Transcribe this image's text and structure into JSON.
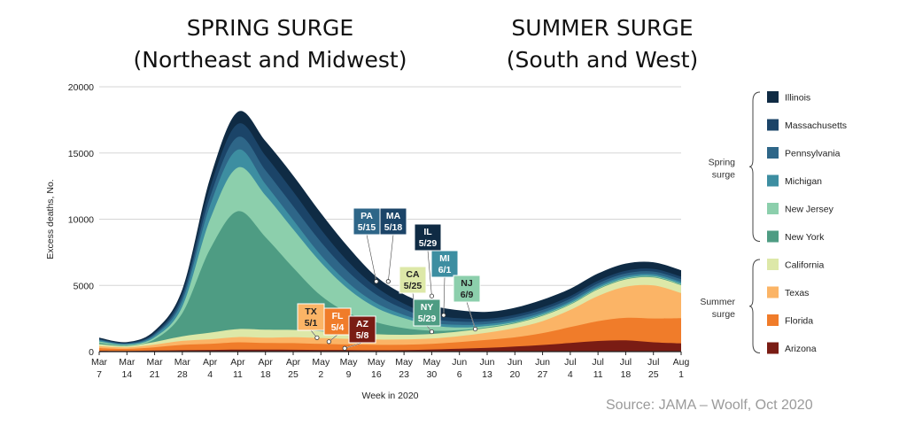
{
  "headlines": {
    "spring_line1": "SPRING SURGE",
    "spring_line2": "(Northeast and Midwest)",
    "summer_line1": "SUMMER SURGE",
    "summer_line2": "(South and West)"
  },
  "source": "Source: JAMA – Woolf, Oct 2020",
  "colors": {
    "Arizona": "#7a1c14",
    "Florida": "#f07c2a",
    "Texas": "#fbb466",
    "California": "#dde8a8",
    "New York": "#4e9c83",
    "New Jersey": "#8ccfac",
    "Michigan": "#3d8ea1",
    "Pennsylvania": "#2e6688",
    "Massachusetts": "#1b4468",
    "Illinois": "#0f2b44"
  },
  "chart_data": {
    "type": "area",
    "stacked": true,
    "xlabel": "Week in 2020",
    "ylabel": "Excess deaths, No.",
    "ylim": [
      0,
      20000
    ],
    "yticks": [
      0,
      5000,
      10000,
      15000,
      20000
    ],
    "grid": true,
    "legend_position": "right",
    "categories": [
      [
        "Mar",
        "7"
      ],
      [
        "Mar",
        "14"
      ],
      [
        "Mar",
        "21"
      ],
      [
        "Mar",
        "28"
      ],
      [
        "Apr",
        "4"
      ],
      [
        "Apr",
        "11"
      ],
      [
        "Apr",
        "18"
      ],
      [
        "Apr",
        "25"
      ],
      [
        "May",
        "2"
      ],
      [
        "May",
        "9"
      ],
      [
        "May",
        "16"
      ],
      [
        "May",
        "23"
      ],
      [
        "May",
        "30"
      ],
      [
        "Jun",
        "6"
      ],
      [
        "Jun",
        "13"
      ],
      [
        "Jun",
        "20"
      ],
      [
        "Jun",
        "27"
      ],
      [
        "Jul",
        "4"
      ],
      [
        "Jul",
        "11"
      ],
      [
        "Jul",
        "18"
      ],
      [
        "Jul",
        "25"
      ],
      [
        "Aug",
        "1"
      ]
    ],
    "series": [
      {
        "name": "Arizona",
        "values": [
          60,
          50,
          80,
          110,
          130,
          150,
          150,
          140,
          130,
          120,
          110,
          120,
          160,
          220,
          280,
          380,
          500,
          650,
          800,
          850,
          700,
          620
        ]
      },
      {
        "name": "Florida",
        "values": [
          200,
          150,
          250,
          400,
          450,
          550,
          500,
          500,
          450,
          420,
          400,
          400,
          420,
          500,
          600,
          700,
          900,
          1200,
          1500,
          1700,
          1800,
          1900
        ]
      },
      {
        "name": "Texas",
        "values": [
          150,
          120,
          200,
          300,
          350,
          400,
          400,
          450,
          450,
          420,
          400,
          400,
          400,
          450,
          550,
          700,
          900,
          1300,
          1900,
          2350,
          2500,
          1900
        ]
      },
      {
        "name": "California",
        "values": [
          150,
          100,
          200,
          350,
          500,
          600,
          600,
          550,
          500,
          450,
          400,
          350,
          350,
          350,
          350,
          350,
          400,
          400,
          500,
          550,
          600,
          600
        ]
      },
      {
        "name": "New York",
        "values": [
          100,
          50,
          200,
          1750,
          6300,
          8900,
          7000,
          4700,
          2700,
          1500,
          900,
          500,
          250,
          100,
          50,
          50,
          50,
          50,
          50,
          50,
          50,
          50
        ]
      },
      {
        "name": "New Jersey",
        "values": [
          100,
          50,
          150,
          500,
          2250,
          3300,
          3150,
          2900,
          2500,
          1800,
          1100,
          750,
          400,
          200,
          100,
          50,
          50,
          50,
          50,
          50,
          50,
          50
        ]
      },
      {
        "name": "Michigan",
        "values": [
          100,
          50,
          150,
          400,
          1050,
          1350,
          850,
          700,
          550,
          450,
          350,
          250,
          200,
          200,
          150,
          150,
          150,
          150,
          150,
          150,
          150,
          150
        ]
      },
      {
        "name": "Pennsylvania",
        "values": [
          50,
          50,
          100,
          300,
          650,
          950,
          1050,
          1050,
          1000,
          850,
          650,
          450,
          300,
          250,
          200,
          200,
          200,
          200,
          200,
          200,
          200,
          200
        ]
      },
      {
        "name": "Massachusetts",
        "values": [
          50,
          50,
          100,
          300,
          700,
          1000,
          1100,
          1100,
          950,
          750,
          550,
          400,
          300,
          250,
          200,
          200,
          200,
          200,
          200,
          200,
          200,
          200
        ]
      },
      {
        "name": "Illinois",
        "values": [
          100,
          50,
          150,
          300,
          700,
          900,
          1100,
          1210,
          1230,
          1100,
          800,
          700,
          720,
          600,
          520,
          530,
          570,
          550,
          550,
          550,
          500,
          480
        ]
      }
    ],
    "legend": [
      {
        "name": "Illinois"
      },
      {
        "name": "Massachusetts"
      },
      {
        "name": "Pennsylvania"
      },
      {
        "name": "Michigan"
      },
      {
        "name": "New Jersey"
      },
      {
        "name": "New York"
      },
      {
        "name": "California"
      },
      {
        "name": "Texas"
      },
      {
        "name": "Florida"
      },
      {
        "name": "Arizona"
      }
    ],
    "groups": [
      {
        "label_line1": "Spring",
        "label_line2": "surge",
        "first": 0,
        "last": 5
      },
      {
        "label_line1": "Summer",
        "label_line2": "surge",
        "first": 6,
        "last": 9
      }
    ],
    "annotations": [
      {
        "state": "PA",
        "date": "5/15",
        "x_index": 10.0,
        "y": 5300,
        "box_color": "#2e6688"
      },
      {
        "state": "MA",
        "date": "5/18",
        "x_index": 10.43,
        "y": 5300,
        "box_color": "#1b4468"
      },
      {
        "state": "IL",
        "date": "5/29",
        "x_index": 12.0,
        "y": 4200,
        "box_color": "#0f2b44"
      },
      {
        "state": "CA",
        "date": "5/25",
        "x_index": 11.43,
        "y": 2800,
        "box_color": "#dde8a8",
        "text_color": "#222222"
      },
      {
        "state": "MI",
        "date": "6/1",
        "x_index": 12.43,
        "y": 2750,
        "box_color": "#3d8ea1"
      },
      {
        "state": "NJ",
        "date": "6/9",
        "x_index": 13.57,
        "y": 1700,
        "box_color": "#8ccfac",
        "text_color": "#222222"
      },
      {
        "state": "NY",
        "date": "5/29",
        "x_index": 12.0,
        "y": 1500,
        "box_color": "#4e9c83"
      },
      {
        "state": "TX",
        "date": "5/1",
        "x_index": 7.86,
        "y": 1050,
        "box_color": "#fbb466",
        "text_color": "#222222"
      },
      {
        "state": "FL",
        "date": "5/4",
        "x_index": 8.29,
        "y": 750,
        "box_color": "#f07c2a"
      },
      {
        "state": "AZ",
        "date": "5/8",
        "x_index": 8.86,
        "y": 250,
        "box_color": "#7a1c14"
      }
    ]
  }
}
